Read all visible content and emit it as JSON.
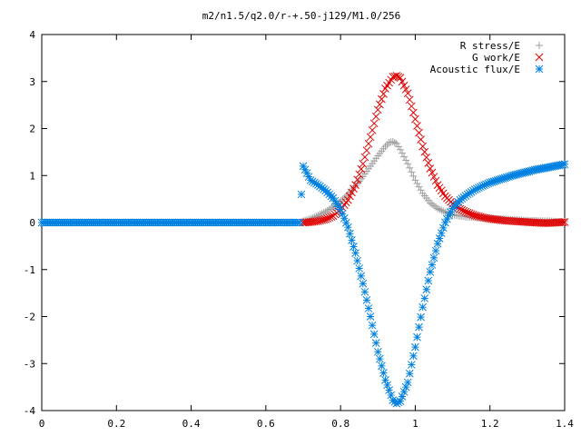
{
  "colors": {
    "rstress": "#a0a0a0",
    "gwork": "#e00000",
    "acoustic": "#0080e0",
    "frame": "#000000"
  },
  "chart_data": {
    "type": "scatter",
    "title": "m2/n1.5/q2.0/r-+.50-j129/M1.0/256",
    "xlabel": "",
    "ylabel": "",
    "xlim": [
      0,
      1.4
    ],
    "ylim": [
      -4,
      4
    ],
    "xticks": [
      "0",
      "0.2",
      "0.4",
      "0.6",
      "0.8",
      "1",
      "1.2",
      "1.4"
    ],
    "yticks": [
      "4",
      "3",
      "2",
      "1",
      "0",
      "-1",
      "-2",
      "-3",
      "-4"
    ],
    "legend_position": "top-right",
    "grid": false,
    "series": [
      {
        "name": "R stress/E",
        "marker": "plus",
        "x": [
          0.7,
          0.72,
          0.74,
          0.76,
          0.78,
          0.8,
          0.82,
          0.84,
          0.86,
          0.88,
          0.9,
          0.92,
          0.93,
          0.94,
          0.95,
          0.96,
          0.98,
          1.0,
          1.02,
          1.04,
          1.06,
          1.08,
          1.1,
          1.12,
          1.14,
          1.16,
          1.18,
          1.2,
          1.22,
          1.24,
          1.26,
          1.28,
          1.3,
          1.32,
          1.34,
          1.36,
          1.38,
          1.4
        ],
        "y": [
          0.03,
          0.08,
          0.15,
          0.23,
          0.33,
          0.45,
          0.6,
          0.78,
          0.98,
          1.2,
          1.42,
          1.62,
          1.7,
          1.72,
          1.68,
          1.55,
          1.25,
          0.9,
          0.62,
          0.42,
          0.3,
          0.22,
          0.17,
          0.14,
          0.12,
          0.11,
          0.1,
          0.09,
          0.08,
          0.07,
          0.06,
          0.05,
          0.04,
          0.04,
          0.03,
          0.03,
          0.02,
          0.02
        ]
      },
      {
        "name": "G work/E",
        "marker": "cross",
        "x": [
          0.7,
          0.72,
          0.74,
          0.76,
          0.78,
          0.8,
          0.82,
          0.84,
          0.86,
          0.88,
          0.9,
          0.92,
          0.94,
          0.95,
          0.96,
          0.98,
          1.0,
          1.02,
          1.04,
          1.06,
          1.08,
          1.1,
          1.12,
          1.14,
          1.16,
          1.18,
          1.2,
          1.22,
          1.24,
          1.26,
          1.28,
          1.3,
          1.32,
          1.34,
          1.36,
          1.38,
          1.4
        ],
        "y": [
          0.0,
          0.01,
          0.03,
          0.07,
          0.14,
          0.27,
          0.48,
          0.8,
          1.25,
          1.82,
          2.4,
          2.85,
          3.1,
          3.12,
          3.08,
          2.75,
          2.2,
          1.62,
          1.15,
          0.8,
          0.56,
          0.4,
          0.29,
          0.21,
          0.15,
          0.11,
          0.08,
          0.06,
          0.04,
          0.03,
          0.02,
          0.01,
          0.0,
          -0.01,
          -0.01,
          0.0,
          0.01
        ]
      },
      {
        "name": "Acoustic flux/E",
        "marker": "star",
        "x": [
          0.0,
          0.1,
          0.2,
          0.3,
          0.4,
          0.5,
          0.6,
          0.69,
          0.7,
          0.72,
          0.74,
          0.76,
          0.78,
          0.8,
          0.82,
          0.84,
          0.86,
          0.88,
          0.9,
          0.92,
          0.94,
          0.95,
          0.96,
          0.98,
          1.0,
          1.02,
          1.04,
          1.06,
          1.08,
          1.1,
          1.12,
          1.14,
          1.16,
          1.18,
          1.2,
          1.22,
          1.24,
          1.26,
          1.28,
          1.3,
          1.32,
          1.34,
          1.36,
          1.38,
          1.4
        ],
        "y": [
          0,
          0,
          0,
          0,
          0,
          0,
          0,
          0,
          1.2,
          0.9,
          0.8,
          0.68,
          0.52,
          0.28,
          -0.1,
          -0.65,
          -1.3,
          -2.0,
          -2.75,
          -3.35,
          -3.78,
          -3.85,
          -3.8,
          -3.4,
          -2.65,
          -1.8,
          -1.05,
          -0.45,
          0.0,
          0.3,
          0.48,
          0.6,
          0.7,
          0.78,
          0.85,
          0.9,
          0.95,
          1.0,
          1.04,
          1.08,
          1.12,
          1.15,
          1.18,
          1.21,
          1.24
        ]
      }
    ]
  }
}
